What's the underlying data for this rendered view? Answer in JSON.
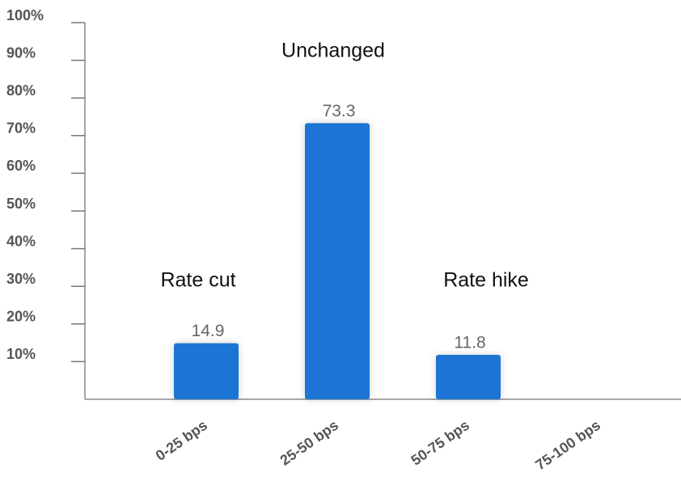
{
  "chart_data": {
    "type": "bar",
    "categories": [
      "0-25 bps",
      "25-50 bps",
      "50-75 bps",
      "75-100 bps"
    ],
    "values": [
      14.9,
      73.3,
      11.8,
      null
    ],
    "color": "#1f74d4",
    "ylim": [
      0,
      100
    ],
    "yticks": [
      {
        "value": 10,
        "label": "10%"
      },
      {
        "value": 20,
        "label": "20%"
      },
      {
        "value": 30,
        "label": "30%"
      },
      {
        "value": 40,
        "label": "40%"
      },
      {
        "value": 50,
        "label": "50%"
      },
      {
        "value": 60,
        "label": "60%"
      },
      {
        "value": 70,
        "label": "70%"
      },
      {
        "value": 80,
        "label": "80%"
      },
      {
        "value": 90,
        "label": "90%"
      },
      {
        "value": 100,
        "label": "100%"
      }
    ],
    "annotations": [
      "Rate cut",
      "Unchanged",
      "Rate hike"
    ]
  }
}
